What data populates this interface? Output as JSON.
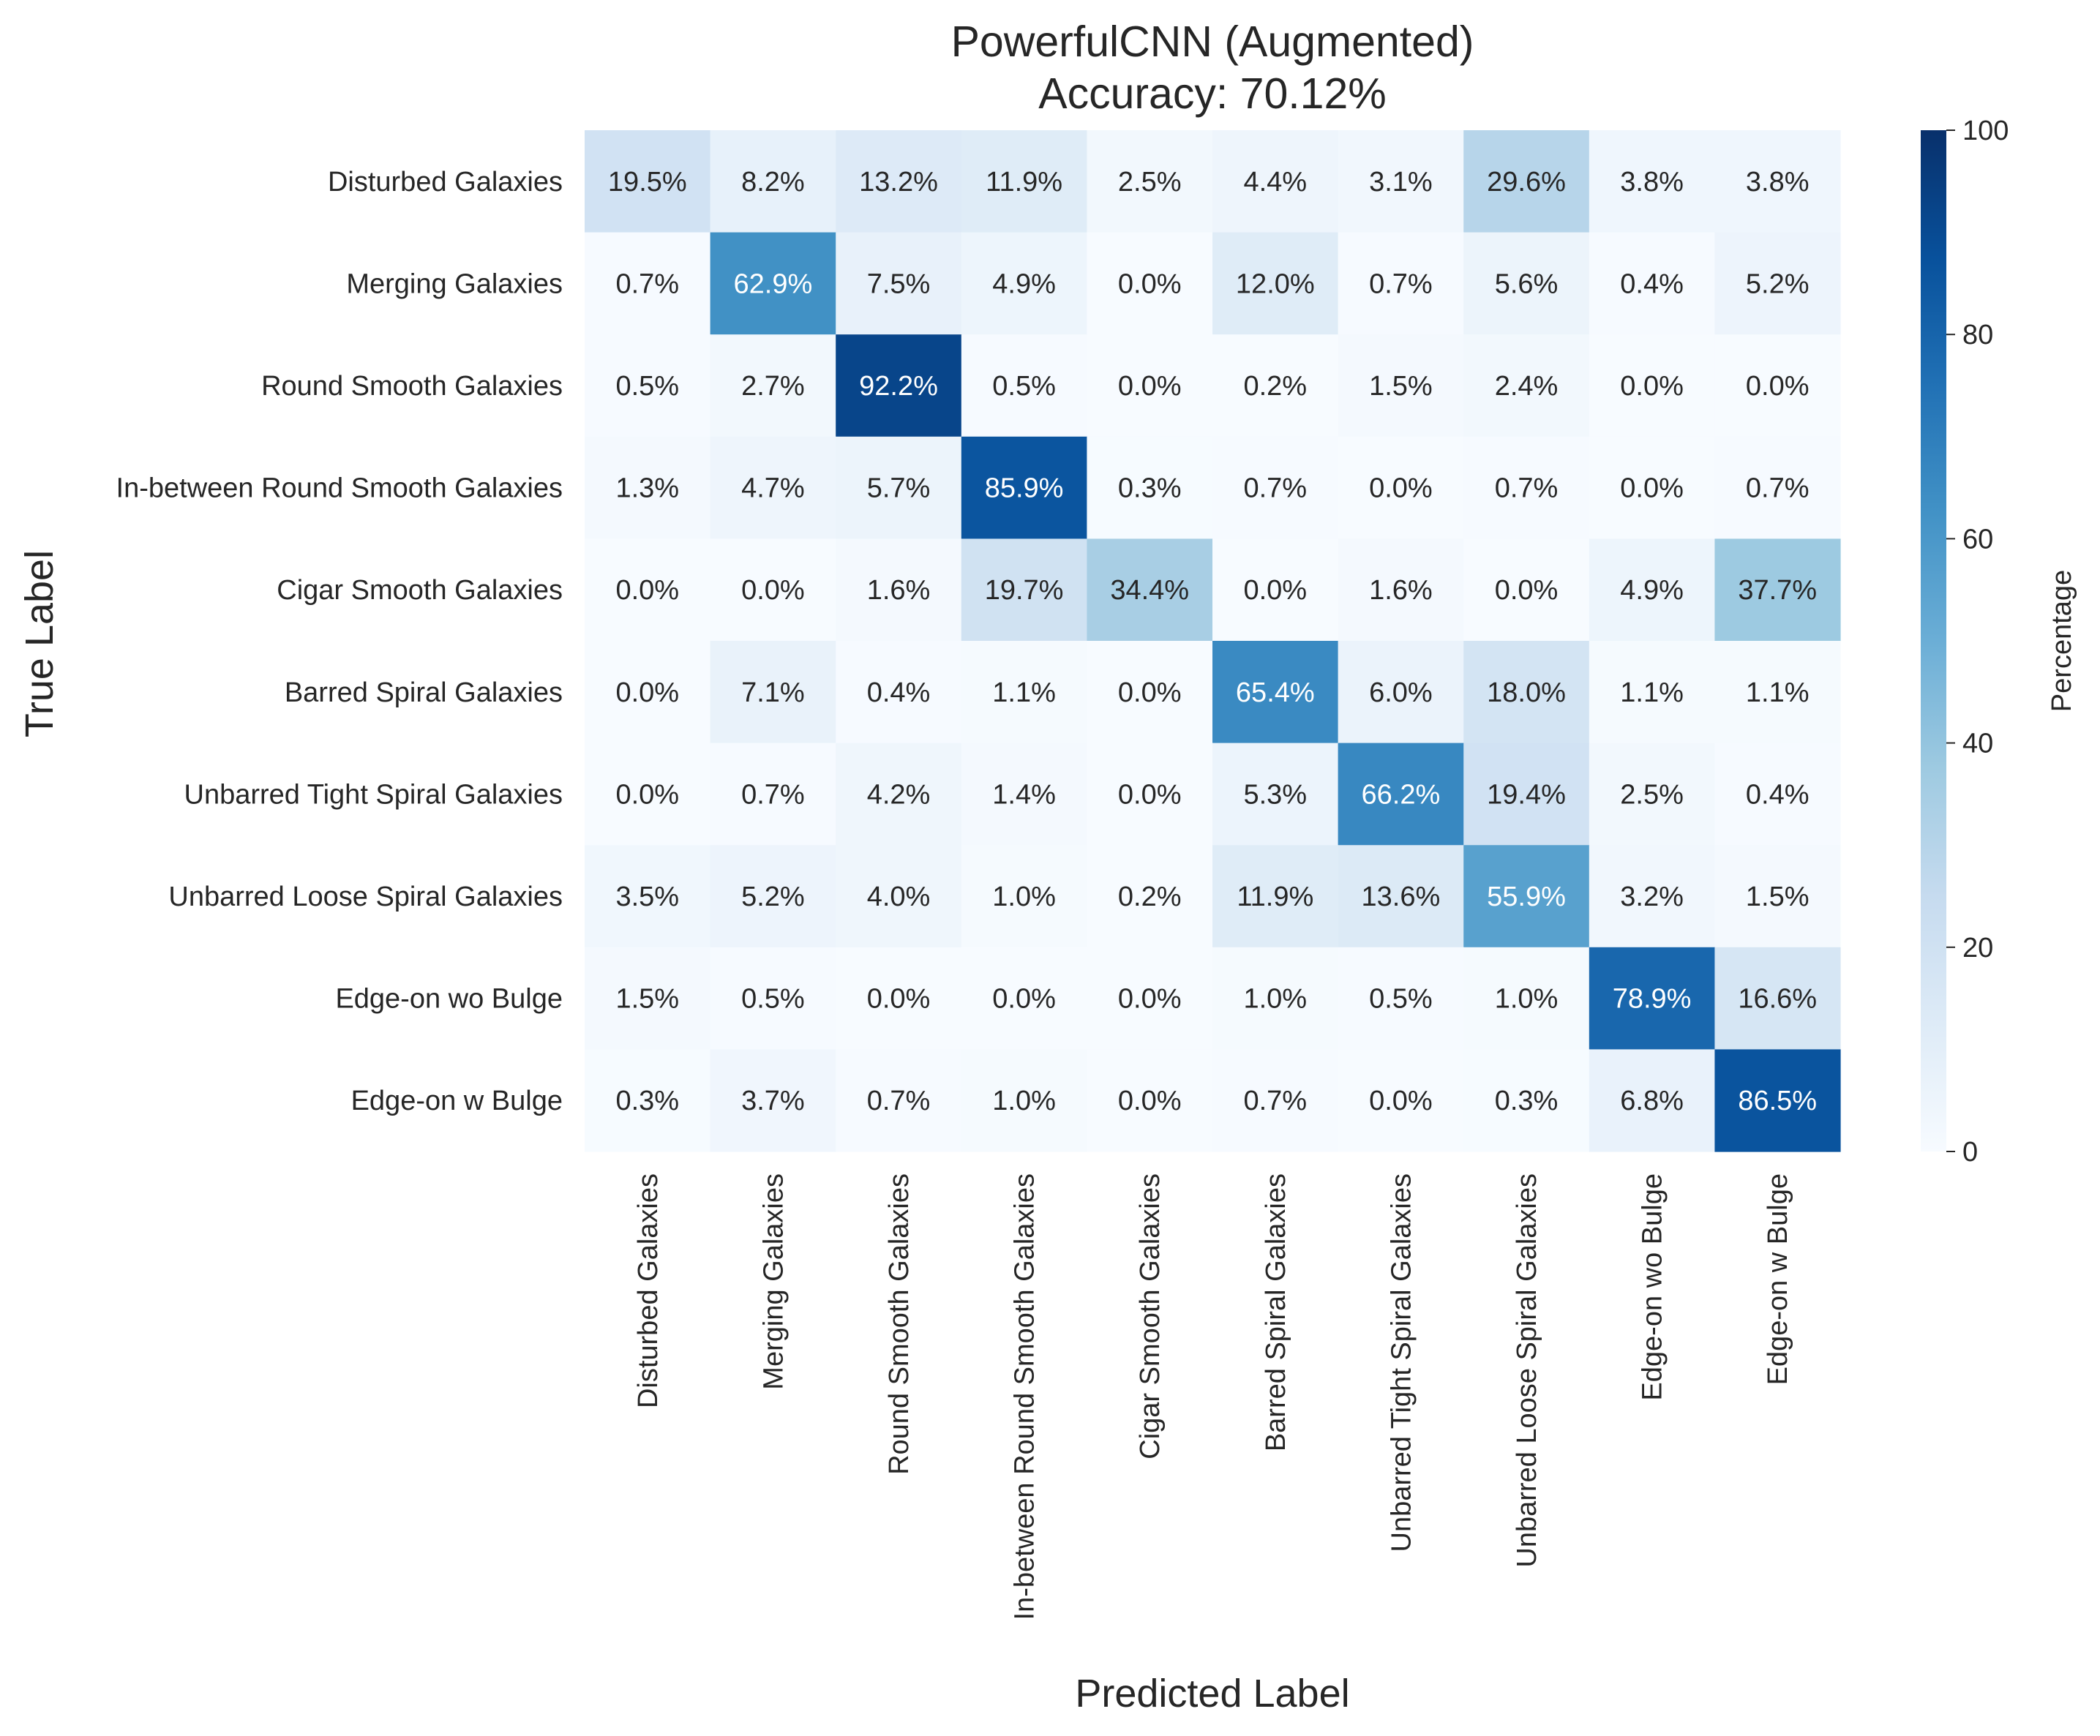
{
  "chart_data": {
    "type": "heatmap",
    "title_line1": "PowerfulCNN (Augmented)",
    "title_line2": "Accuracy: 70.12%",
    "xlabel": "Predicted Label",
    "ylabel": "True Label",
    "colorbar_label": "Percentage",
    "colorbar_range": [
      0,
      100
    ],
    "colorbar_ticks": [
      0,
      20,
      40,
      60,
      80,
      100
    ],
    "colormap": "Blues",
    "value_suffix": "%",
    "row_labels": [
      "Disturbed Galaxies",
      "Merging Galaxies",
      "Round Smooth Galaxies",
      "In-between Round Smooth Galaxies",
      "Cigar Smooth Galaxies",
      "Barred Spiral Galaxies",
      "Unbarred Tight Spiral Galaxies",
      "Unbarred Loose Spiral Galaxies",
      "Edge-on wo Bulge",
      "Edge-on w Bulge"
    ],
    "col_labels": [
      "Disturbed Galaxies",
      "Merging Galaxies",
      "Round Smooth Galaxies",
      "In-between Round Smooth Galaxies",
      "Cigar Smooth Galaxies",
      "Barred Spiral Galaxies",
      "Unbarred Tight Spiral Galaxies",
      "Unbarred Loose Spiral Galaxies",
      "Edge-on wo Bulge",
      "Edge-on w Bulge"
    ],
    "matrix": [
      [
        19.5,
        8.2,
        13.2,
        11.9,
        2.5,
        4.4,
        3.1,
        29.6,
        3.8,
        3.8
      ],
      [
        0.7,
        62.9,
        7.5,
        4.9,
        0.0,
        12.0,
        0.7,
        5.6,
        0.4,
        5.2
      ],
      [
        0.5,
        2.7,
        92.2,
        0.5,
        0.0,
        0.2,
        1.5,
        2.4,
        0.0,
        0.0
      ],
      [
        1.3,
        4.7,
        5.7,
        85.9,
        0.3,
        0.7,
        0.0,
        0.7,
        0.0,
        0.7
      ],
      [
        0.0,
        0.0,
        1.6,
        19.7,
        34.4,
        0.0,
        1.6,
        0.0,
        4.9,
        37.7
      ],
      [
        0.0,
        7.1,
        0.4,
        1.1,
        0.0,
        65.4,
        6.0,
        18.0,
        1.1,
        1.1
      ],
      [
        0.0,
        0.7,
        4.2,
        1.4,
        0.0,
        5.3,
        66.2,
        19.4,
        2.5,
        0.4
      ],
      [
        3.5,
        5.2,
        4.0,
        1.0,
        0.2,
        11.9,
        13.6,
        55.9,
        3.2,
        1.5
      ],
      [
        1.5,
        0.5,
        0.0,
        0.0,
        0.0,
        1.0,
        0.5,
        1.0,
        78.9,
        16.6
      ],
      [
        0.3,
        3.7,
        0.7,
        1.0,
        0.0,
        0.7,
        0.0,
        0.3,
        6.8,
        86.5
      ]
    ]
  }
}
